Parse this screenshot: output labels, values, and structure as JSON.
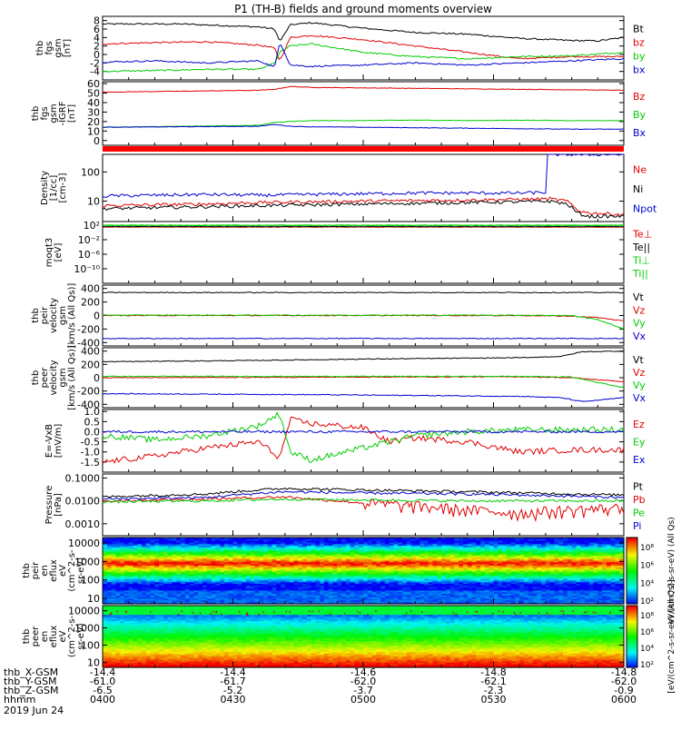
{
  "title": "P1 (TH-B) fields and ground moments overview",
  "colors": {
    "black": "#000000",
    "red": "#e00000",
    "green": "#00cc00",
    "blue": "#0000d0"
  },
  "chart_data": [
    {
      "type": "line",
      "ylabel_lines": [
        "thb",
        "fgs",
        "gsm",
        "[nT]"
      ],
      "ylim": [
        -6,
        9
      ],
      "yticks": [
        "8",
        "6",
        "4",
        "2",
        "0",
        "-2",
        "-4"
      ],
      "ytick_values": [
        8,
        6,
        4,
        2,
        0,
        -2,
        -4
      ],
      "series": [
        {
          "name": "Bt",
          "color": "black",
          "x": [
            0,
            0.15,
            0.3,
            0.33,
            0.34,
            0.36,
            0.4,
            0.5,
            0.6,
            0.7,
            0.8,
            0.9,
            0.95,
            1
          ],
          "values": [
            7.2,
            7.2,
            6.5,
            6.0,
            3.0,
            7.0,
            7.5,
            6.2,
            5.2,
            4.8,
            3.8,
            3.3,
            3.2,
            4.0
          ]
        },
        {
          "name": "bz",
          "color": "red",
          "x": [
            0,
            0.1,
            0.2,
            0.3,
            0.33,
            0.34,
            0.36,
            0.4,
            0.5,
            0.6,
            0.7,
            0.8,
            0.9,
            1
          ],
          "values": [
            2.5,
            2.8,
            3.0,
            2.2,
            1.5,
            -1.5,
            4.0,
            4.5,
            3.5,
            2.0,
            0.5,
            -1.0,
            -0.5,
            -0.5
          ]
        },
        {
          "name": "by",
          "color": "green",
          "x": [
            0,
            0.1,
            0.2,
            0.3,
            0.33,
            0.34,
            0.36,
            0.4,
            0.5,
            0.6,
            0.7,
            0.8,
            0.9,
            1
          ],
          "values": [
            -4.0,
            -3.8,
            -3.5,
            -3.5,
            -2.0,
            0.5,
            2.0,
            2.5,
            0.5,
            -0.5,
            -1.0,
            -0.5,
            -0.3,
            0.5
          ]
        },
        {
          "name": "bx",
          "color": "blue",
          "x": [
            0,
            0.1,
            0.2,
            0.3,
            0.33,
            0.34,
            0.36,
            0.4,
            0.5,
            0.6,
            0.7,
            0.8,
            0.9,
            1
          ],
          "values": [
            -1.8,
            -1.5,
            -2.0,
            -1.5,
            -3.0,
            3.0,
            -2.5,
            -2.8,
            -2.5,
            -2.0,
            -2.5,
            -2.0,
            -1.5,
            -1.0
          ]
        }
      ]
    },
    {
      "type": "line",
      "ylabel_lines": [
        "thb",
        "fgs",
        "gsm",
        "-IGRF",
        "[nT]"
      ],
      "ylim": [
        -5,
        62
      ],
      "yticks": [
        "60",
        "50",
        "40",
        "30",
        "20",
        "10",
        "0"
      ],
      "ytick_values": [
        60,
        50,
        40,
        30,
        20,
        10,
        0
      ],
      "series": [
        {
          "name": "Bz",
          "color": "red",
          "x": [
            0,
            0.15,
            0.3,
            0.33,
            0.36,
            0.4,
            0.5,
            0.6,
            0.7,
            0.8,
            0.9,
            1
          ],
          "values": [
            51,
            52,
            53,
            54,
            57,
            56,
            55.5,
            55,
            54.5,
            54,
            53.5,
            53
          ]
        },
        {
          "name": "By",
          "color": "green",
          "x": [
            0,
            0.15,
            0.3,
            0.33,
            0.36,
            0.4,
            0.5,
            0.6,
            0.7,
            0.8,
            0.9,
            1
          ],
          "values": [
            14,
            15,
            16,
            19,
            20,
            21,
            21,
            21.5,
            21,
            21.5,
            21,
            21
          ]
        },
        {
          "name": "Bx",
          "color": "blue",
          "x": [
            0,
            0.15,
            0.3,
            0.33,
            0.36,
            0.4,
            0.5,
            0.6,
            0.7,
            0.8,
            0.9,
            1
          ],
          "values": [
            14,
            14.5,
            15,
            17,
            15,
            14.5,
            14,
            13.5,
            13,
            12.5,
            12,
            12
          ]
        }
      ]
    },
    {
      "type": "line",
      "ylabel_lines": [
        "Density",
        "[1/cc]",
        "[cm-3]"
      ],
      "log": true,
      "ylim": [
        2,
        400
      ],
      "yticks": [
        "100",
        "10"
      ],
      "ytick_values": [
        100,
        10
      ],
      "series": [
        {
          "name": "Ne",
          "color": "red",
          "x": [
            0,
            0.1,
            0.2,
            0.3,
            0.4,
            0.5,
            0.6,
            0.7,
            0.8,
            0.86,
            0.89,
            0.91,
            0.93,
            1
          ],
          "values": [
            7,
            7.5,
            8,
            9,
            9.5,
            10,
            10.5,
            11,
            11.5,
            12,
            10,
            5,
            4,
            3.5
          ]
        },
        {
          "name": "Ni",
          "color": "black",
          "x": [
            0,
            0.1,
            0.2,
            0.3,
            0.4,
            0.5,
            0.6,
            0.7,
            0.8,
            0.86,
            0.89,
            0.91,
            0.93,
            1
          ],
          "values": [
            5.5,
            6,
            6.5,
            7,
            7.5,
            8,
            8.5,
            9,
            9.5,
            10,
            8,
            4,
            3,
            3
          ]
        },
        {
          "name": "Npot",
          "color": "blue",
          "x": [
            0,
            0.1,
            0.2,
            0.3,
            0.4,
            0.5,
            0.6,
            0.7,
            0.8,
            0.85,
            0.852,
            0.855,
            1
          ],
          "values": [
            15,
            16,
            17,
            16,
            17,
            18,
            19,
            19,
            19,
            20,
            400,
            400,
            400
          ]
        }
      ]
    },
    {
      "type": "line",
      "ylabel_lines": [
        "moqt3",
        "[eV]"
      ],
      "log": true,
      "ylim": [
        1e-14,
        1000
      ],
      "yticks": [
        "10²",
        "10⁻²",
        "10⁻⁶",
        "10⁻¹⁰"
      ],
      "ytick_values": [
        100,
        0.01,
        1e-06,
        1e-10
      ],
      "series": [
        {
          "name": "Te⊥",
          "color": "red",
          "x": [
            0,
            1
          ],
          "values": [
            30,
            30
          ]
        },
        {
          "name": "Te||",
          "color": "black",
          "x": [
            0,
            1
          ],
          "values": [
            40,
            40
          ]
        },
        {
          "name": "Ti⊥",
          "color": "green",
          "x": [
            0,
            1
          ],
          "values": [
            80,
            80
          ]
        },
        {
          "name": "Ti||",
          "color": "green",
          "x": [
            0,
            1
          ],
          "values": [
            100,
            100
          ]
        }
      ]
    },
    {
      "type": "line",
      "ylabel_lines": [
        "thb",
        "peir",
        "velocity",
        "gsm",
        "[km/s (All Qs)]"
      ],
      "ylim": [
        -450,
        450
      ],
      "yticks": [
        "400",
        "200",
        "0",
        "-200",
        "-400"
      ],
      "ytick_values": [
        400,
        200,
        0,
        -200,
        -400
      ],
      "series": [
        {
          "name": "Vt",
          "color": "black",
          "x": [
            0,
            1
          ],
          "values": [
            340,
            340
          ]
        },
        {
          "name": "Vz",
          "color": "red",
          "x": [
            0,
            0.5,
            0.8,
            0.9,
            0.95,
            1
          ],
          "values": [
            0,
            0,
            0,
            -10,
            -30,
            -80
          ]
        },
        {
          "name": "Vy",
          "color": "green",
          "x": [
            0,
            0.5,
            0.8,
            0.9,
            0.95,
            1
          ],
          "values": [
            5,
            5,
            5,
            0,
            -60,
            -200
          ]
        },
        {
          "name": "Vx",
          "color": "blue",
          "x": [
            0,
            1
          ],
          "values": [
            -340,
            -340
          ]
        }
      ]
    },
    {
      "type": "line",
      "ylabel_lines": [
        "thb",
        "peer",
        "velocity",
        "gsm",
        "[km/s (All Qs)]"
      ],
      "ylim": [
        -450,
        450
      ],
      "yticks": [
        "400",
        "200",
        "0",
        "-200",
        "-400"
      ],
      "ytick_values": [
        400,
        200,
        0,
        -200,
        -400
      ],
      "series": [
        {
          "name": "Vt",
          "color": "black",
          "x": [
            0,
            0.3,
            0.5,
            0.8,
            0.88,
            0.92,
            1
          ],
          "values": [
            240,
            260,
            280,
            300,
            320,
            390,
            400
          ]
        },
        {
          "name": "Vz",
          "color": "red",
          "x": [
            0,
            0.3,
            0.5,
            0.8,
            0.9,
            1
          ],
          "values": [
            0,
            5,
            10,
            15,
            0,
            -60
          ]
        },
        {
          "name": "Vy",
          "color": "green",
          "x": [
            0,
            0.3,
            0.5,
            0.8,
            0.9,
            1
          ],
          "values": [
            20,
            20,
            20,
            20,
            10,
            -150
          ]
        },
        {
          "name": "Vx",
          "color": "blue",
          "x": [
            0,
            0.3,
            0.5,
            0.8,
            0.88,
            0.92,
            1
          ],
          "values": [
            -240,
            -250,
            -260,
            -280,
            -300,
            -360,
            -300
          ]
        }
      ]
    },
    {
      "type": "line",
      "ylabel_lines": [
        "E=-VxB",
        "[mV/m]"
      ],
      "ylim": [
        -2.0,
        1.1
      ],
      "yticks": [
        "1.0",
        "0.5",
        "0.0",
        "-0.5",
        "-1.0",
        "-1.5"
      ],
      "ytick_values": [
        1.0,
        0.5,
        0.0,
        -0.5,
        -1.0,
        -1.5
      ],
      "series": [
        {
          "name": "Ez",
          "color": "red",
          "x": [
            0,
            0.1,
            0.2,
            0.3,
            0.34,
            0.36,
            0.4,
            0.5,
            0.55,
            0.6,
            0.7,
            0.8,
            0.9,
            1
          ],
          "values": [
            -1.5,
            -1.2,
            -0.8,
            -0.5,
            -1.3,
            0.6,
            0.4,
            0.2,
            -0.5,
            -0.3,
            -0.5,
            -1.0,
            -0.9,
            -0.9
          ]
        },
        {
          "name": "Ey",
          "color": "green",
          "x": [
            0,
            0.1,
            0.2,
            0.3,
            0.34,
            0.36,
            0.4,
            0.5,
            0.55,
            0.6,
            0.7,
            0.8,
            0.9,
            1
          ],
          "values": [
            -0.2,
            -0.4,
            -0.2,
            0.3,
            0.9,
            -1.0,
            -1.4,
            -0.8,
            -0.5,
            -0.2,
            0.0,
            0.1,
            0.1,
            0.1
          ]
        },
        {
          "name": "Ex",
          "color": "blue",
          "x": [
            0,
            0.3,
            0.6,
            1
          ],
          "values": [
            0.0,
            0.0,
            0.0,
            0.0
          ]
        }
      ]
    },
    {
      "type": "line",
      "ylabel_lines": [
        "Pressure",
        "[nPa]"
      ],
      "log": true,
      "ylim": [
        0.0003,
        0.15
      ],
      "yticks": [
        "0.1000",
        "0.0100",
        "0.0010"
      ],
      "ytick_values": [
        0.1,
        0.01,
        0.001
      ],
      "series": [
        {
          "name": "Pt",
          "color": "black",
          "x": [
            0,
            0.2,
            0.35,
            0.5,
            0.7,
            0.9,
            1
          ],
          "values": [
            0.015,
            0.02,
            0.035,
            0.03,
            0.025,
            0.02,
            0.018
          ]
        },
        {
          "name": "Pb",
          "color": "red",
          "x": [
            0,
            0.2,
            0.35,
            0.4,
            0.5,
            0.6,
            0.7,
            0.8,
            0.9,
            1
          ],
          "values": [
            0.01,
            0.012,
            0.015,
            0.012,
            0.008,
            0.006,
            0.004,
            0.003,
            0.004,
            0.005
          ]
        },
        {
          "name": "Pe",
          "color": "green",
          "x": [
            0,
            0.2,
            0.35,
            0.5,
            0.7,
            0.9,
            1
          ],
          "values": [
            0.009,
            0.01,
            0.012,
            0.011,
            0.01,
            0.01,
            0.01
          ]
        },
        {
          "name": "Pi",
          "color": "blue",
          "x": [
            0,
            0.2,
            0.35,
            0.5,
            0.7,
            0.9,
            1
          ],
          "values": [
            0.012,
            0.014,
            0.025,
            0.022,
            0.02,
            0.016,
            0.014
          ]
        }
      ]
    },
    {
      "type": "heatmap",
      "ylabel_lines": [
        "thb",
        "peir",
        "en",
        "eflux",
        "eV",
        "(cm^2-s-",
        "sr-eV)"
      ],
      "log": true,
      "ylim": [
        5,
        20000
      ],
      "yticks": [
        "10000",
        "1000",
        "100",
        "10"
      ],
      "ytick_values": [
        10000,
        1000,
        100,
        10
      ],
      "note": "ion energy-flux spectrogram; intense band near 500-1000 eV"
    },
    {
      "type": "heatmap",
      "ylabel_lines": [
        "thb",
        "peer",
        "en",
        "eflux",
        "eV",
        "(cm^2-s-",
        "sr-eV)"
      ],
      "log": true,
      "ylim": [
        5,
        20000
      ],
      "yticks": [
        "10000",
        "1000",
        "100",
        "10"
      ],
      "ytick_values": [
        10000,
        1000,
        100,
        10
      ],
      "note": "electron energy-flux spectrogram; flux highest at low energy"
    }
  ],
  "legends": [
    [
      "Bt",
      "bz",
      "by",
      "bx"
    ],
    [
      "Bz",
      "By",
      "Bx"
    ],
    [
      "Ne",
      "Ni",
      "Npot"
    ],
    [
      "Te⊥",
      "Te||",
      "Ti⊥",
      "Ti||"
    ],
    [
      "Vt",
      "Vz",
      "Vy",
      "Vx"
    ],
    [
      "Vt",
      "Vz",
      "Vy",
      "Vx"
    ],
    [
      "Ez",
      "Ey",
      "Ex"
    ],
    [
      "Pt",
      "Pb",
      "Pe",
      "Pi"
    ]
  ],
  "legend_colors": [
    [
      "black",
      "red",
      "green",
      "blue"
    ],
    [
      "red",
      "green",
      "blue"
    ],
    [
      "red",
      "black",
      "blue"
    ],
    [
      "red",
      "black",
      "green",
      "green"
    ],
    [
      "black",
      "red",
      "green",
      "blue"
    ],
    [
      "black",
      "red",
      "green",
      "blue"
    ],
    [
      "red",
      "green",
      "blue"
    ],
    [
      "black",
      "red",
      "green",
      "blue"
    ]
  ],
  "colorbars": [
    {
      "ticks": [
        "10⁸",
        "10⁶",
        "10⁴",
        "10²"
      ],
      "label": "eV/(cm^2-s-sr-eV) (All Qs)"
    },
    {
      "ticks": [
        "10⁸",
        "10⁶",
        "10⁴",
        "10²"
      ],
      "label": "[eV/(cm^2-s-sr-eV) (All Qs)]"
    }
  ],
  "x_axis": {
    "row_labels": [
      "thb_X-GSM",
      "thb_Y-GSM",
      "thb_Z-GSM",
      "hhmm"
    ],
    "date": "2019 Jun 24",
    "columns": [
      [
        "-14.4",
        "-61.0",
        "-6.5",
        "0400"
      ],
      [
        "-14.4",
        "-61.7",
        "-5.2",
        "0430"
      ],
      [
        "-14.6",
        "-62.0",
        "-3.7",
        "0500"
      ],
      [
        "-14.8",
        "-62.1",
        "-2.3",
        "0530"
      ],
      [
        "-14.8",
        "-62.0",
        "-0.9",
        "0600"
      ]
    ]
  }
}
